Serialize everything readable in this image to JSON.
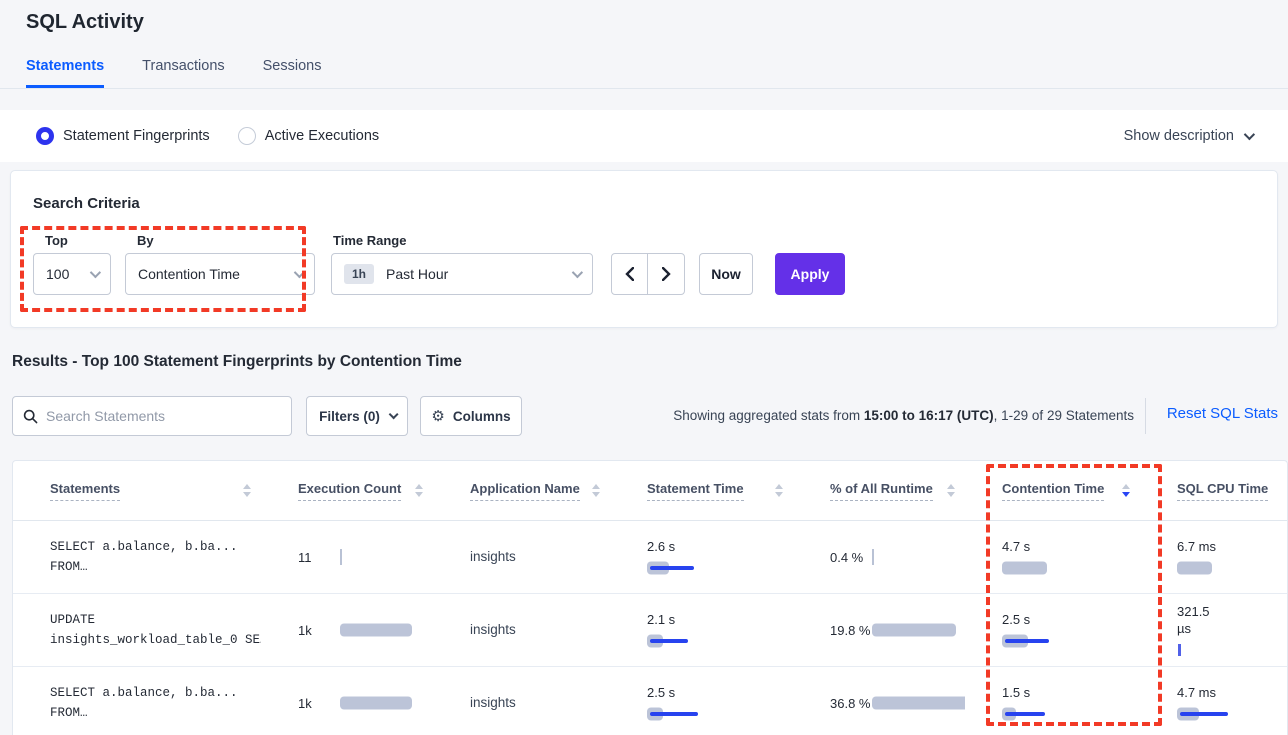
{
  "page": {
    "title": "SQL Activity"
  },
  "tabs": [
    {
      "label": "Statements",
      "active": true
    },
    {
      "label": "Transactions",
      "active": false
    },
    {
      "label": "Sessions",
      "active": false
    }
  ],
  "view_toggle": {
    "options": [
      {
        "label": "Statement Fingerprints",
        "selected": true
      },
      {
        "label": "Active Executions",
        "selected": false
      }
    ],
    "show_description": "Show description"
  },
  "search_criteria": {
    "title": "Search Criteria",
    "top": {
      "label": "Top",
      "value": "100"
    },
    "by": {
      "label": "By",
      "value": "Contention Time"
    },
    "time_range": {
      "label": "Time Range",
      "badge": "1h",
      "value": "Past Hour"
    },
    "prev_label": "‹",
    "next_label": "›",
    "now_label": "Now",
    "apply_label": "Apply"
  },
  "results": {
    "heading": "Results - Top 100 Statement Fingerprints by Contention Time",
    "search_placeholder": "Search Statements",
    "filters_label": "Filters (0)",
    "columns_label": "Columns",
    "stats_prefix": "Showing aggregated stats from ",
    "stats_bold": "15:00 to 16:17 (UTC)",
    "stats_suffix": ", 1-29 of 29 Statements",
    "reset_label": "Reset SQL Stats"
  },
  "table": {
    "headers": [
      {
        "label": "Statements",
        "sort": "none",
        "show_sort": true
      },
      {
        "label": "Execution Count",
        "sort": "none",
        "show_sort": true
      },
      {
        "label": "Application Name",
        "sort": "none",
        "show_sort": true
      },
      {
        "label": "Statement Time",
        "sort": "none",
        "show_sort": true
      },
      {
        "label": "% of All Runtime",
        "sort": "none",
        "show_sort": true
      },
      {
        "label": "Contention Time",
        "sort": "desc",
        "show_sort": true
      },
      {
        "label": "SQL CPU Time",
        "sort": "none",
        "show_sort": false
      }
    ],
    "rows": [
      {
        "statement_line1": "SELECT a.balance, b.ba...",
        "statement_line2": "FROM…",
        "execution": {
          "text": "11",
          "bar": {
            "tick": "gray"
          }
        },
        "application": "insights",
        "statement_time": {
          "text": "2.6 s",
          "bar": {
            "gray": 22,
            "blue": 44
          }
        },
        "runtime": {
          "text": "0.4 %",
          "bar": {
            "tick": "gray"
          }
        },
        "contention_time": {
          "text": "4.7 s",
          "bar": {
            "gray": 45
          }
        },
        "sql_cpu_time": {
          "text": "6.7 ms",
          "bar": {
            "gray": 35
          }
        }
      },
      {
        "statement_line1": "UPDATE",
        "statement_line2": "insights_workload_table_0 SE…",
        "execution": {
          "text": "1k",
          "bar": {
            "gray": 72
          }
        },
        "application": "insights",
        "statement_time": {
          "text": "2.1 s",
          "bar": {
            "gray": 16,
            "blue": 38
          }
        },
        "runtime": {
          "text": "19.8 %",
          "bar": {
            "gray": 84
          }
        },
        "contention_time": {
          "text": "2.5 s",
          "bar": {
            "gray": 26,
            "blue": 44
          }
        },
        "sql_cpu_time": {
          "text": "321.5 µs",
          "bar": {
            "tick": "blue"
          }
        }
      },
      {
        "statement_line1": "SELECT a.balance, b.ba...",
        "statement_line2": "FROM…",
        "execution": {
          "text": "1k",
          "bar": {
            "gray": 72
          }
        },
        "application": "insights",
        "statement_time": {
          "text": "2.5 s",
          "bar": {
            "gray": 16,
            "blue": 48
          }
        },
        "runtime": {
          "text": "36.8 %",
          "bar": {
            "gray": 118
          }
        },
        "contention_time": {
          "text": "1.5 s",
          "bar": {
            "gray": 14,
            "blue": 40
          }
        },
        "sql_cpu_time": {
          "text": "4.7 ms",
          "bar": {
            "gray": 22,
            "blue": 48
          }
        }
      }
    ]
  },
  "colors": {
    "accent_blue": "#0b5cff",
    "apply_purple": "#6430e8",
    "bar_blue": "#2743ef",
    "bar_gray": "#bcc4d8",
    "annotation_red": "#f23a26"
  }
}
